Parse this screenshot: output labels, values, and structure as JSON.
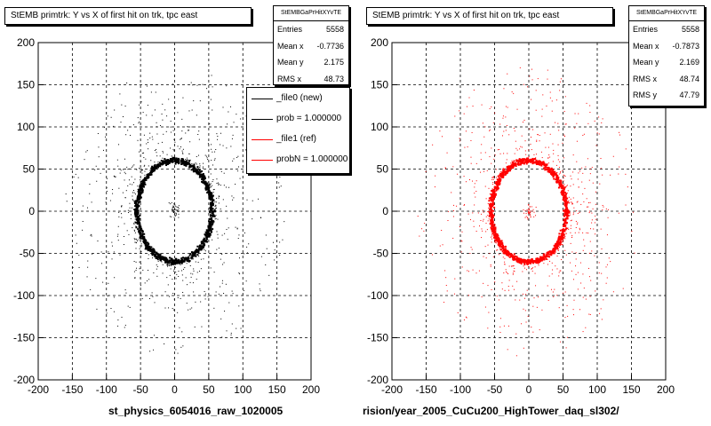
{
  "chart_data": [
    {
      "type": "scatter",
      "title": "StEMB primtrk: Y vs X of first hit on trk, tpc east",
      "stats": {
        "name": "StEMBGaPrHitXYvTE",
        "entries": "5558",
        "mean_x": "-0.7736",
        "mean_y": "2.175",
        "rms_x": "48.73"
      },
      "xlim": [
        -200,
        200
      ],
      "ylim": [
        -200,
        200
      ],
      "xticks": [
        -200,
        -150,
        -100,
        -50,
        0,
        50,
        100,
        150,
        200
      ],
      "yticks": [
        -200,
        -150,
        -100,
        -50,
        0,
        50,
        100,
        150,
        200
      ],
      "grid": true,
      "marker_color": "#000000",
      "ring": {
        "center": [
          0,
          0
        ],
        "radius_x": 55,
        "radius_y": 60
      },
      "legend": {
        "placement": "top-right",
        "entries": [
          {
            "label": "_file0 (new)",
            "color": "#000000"
          },
          {
            "label": "prob = 1.000000",
            "color": "#000000"
          },
          {
            "label": "_file1 (ref)",
            "color": "#ff0000"
          },
          {
            "label": "probN = 1.000000",
            "color": "#ff0000"
          }
        ]
      },
      "xlabel": "st_physics_6054016_raw_1020005"
    },
    {
      "type": "scatter",
      "title": "StEMB primtrk: Y vs X of first hit on trk, tpc east",
      "stats": {
        "name": "StEMBGaPrHitXYvTE",
        "entries": "5558",
        "mean_x": "-0.7873",
        "mean_y": "2.169",
        "rms_x": "48.74",
        "rms_y": "47.79"
      },
      "xlim": [
        -200,
        200
      ],
      "ylim": [
        -200,
        200
      ],
      "xticks": [
        -200,
        -150,
        -100,
        -50,
        0,
        50,
        100,
        150,
        200
      ],
      "yticks": [
        -200,
        -150,
        -100,
        -50,
        0,
        50,
        100,
        150,
        200
      ],
      "grid": true,
      "marker_color": "#ff0000",
      "ring": {
        "center": [
          0,
          0
        ],
        "radius_x": 55,
        "radius_y": 60
      },
      "xlabel": "rision/year_2005_CuCu200_HighTower_daq_sl302/"
    }
  ]
}
